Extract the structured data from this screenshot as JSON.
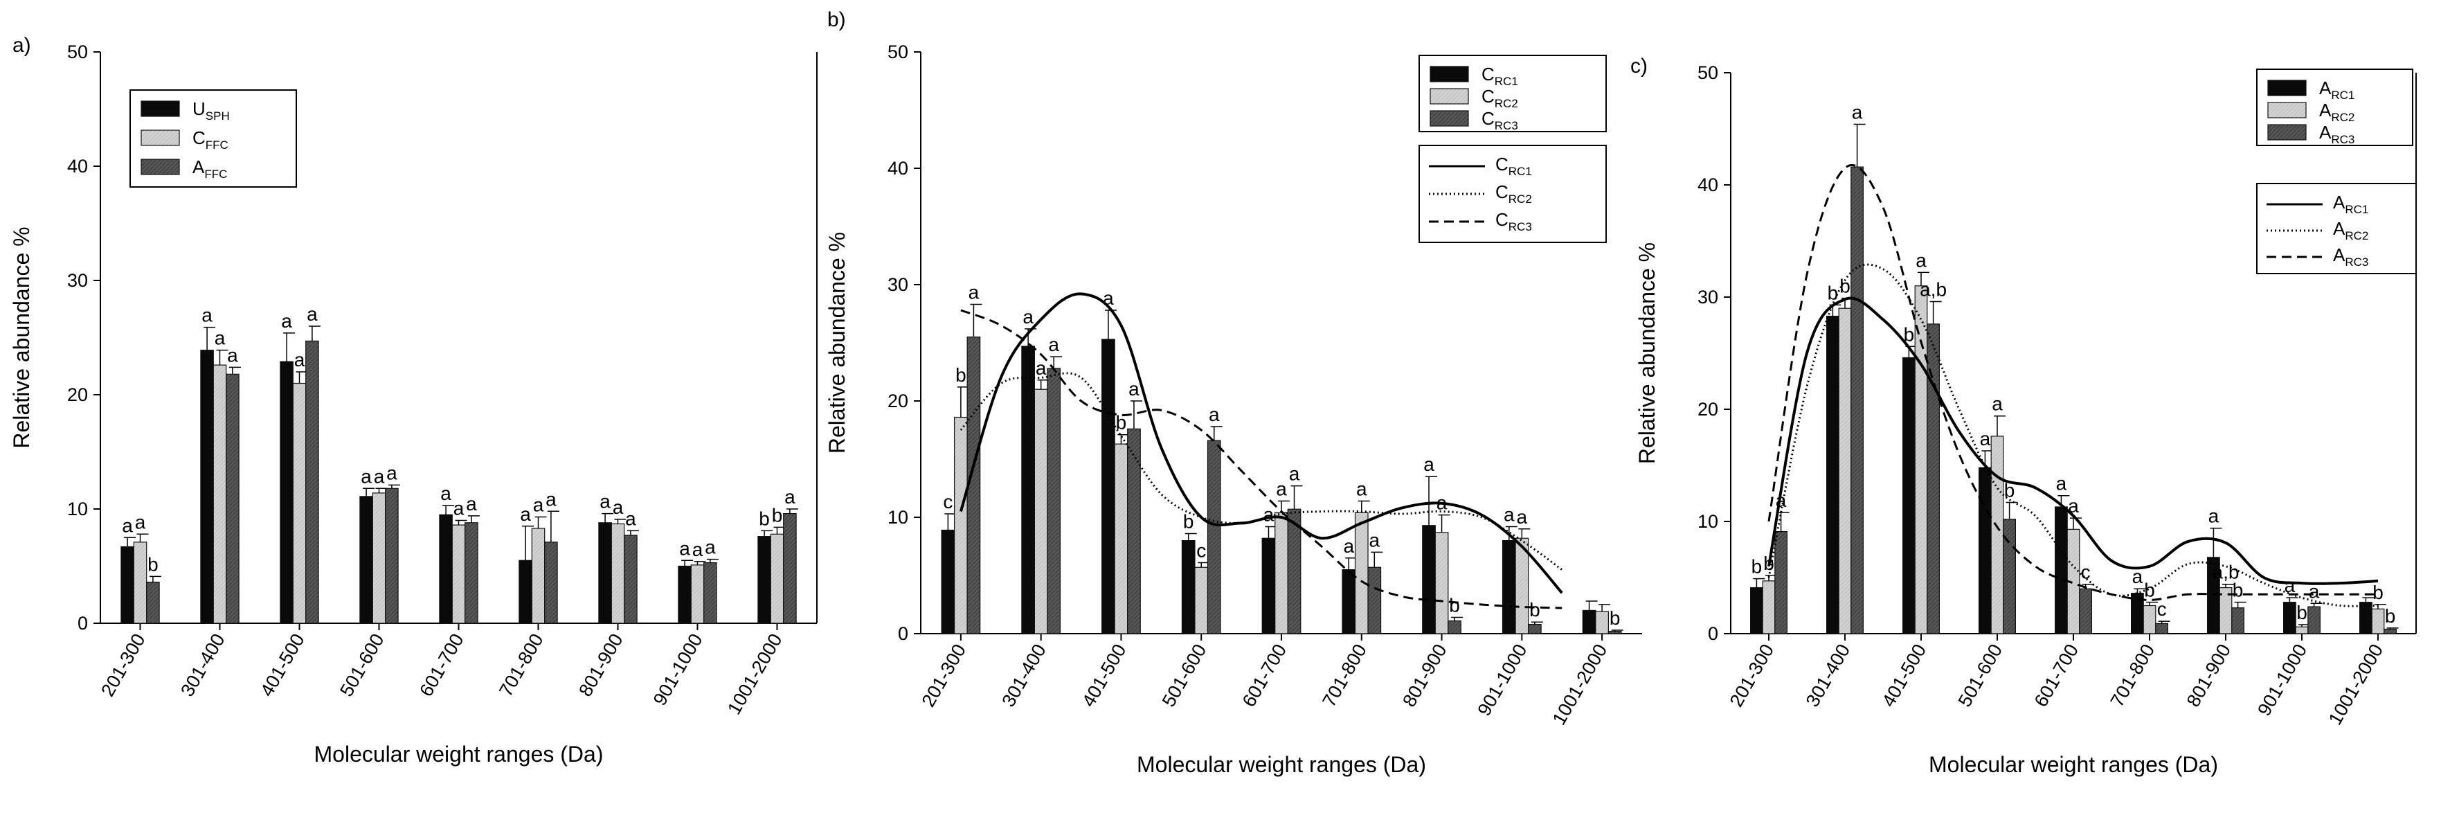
{
  "colors": {
    "s1": "#0a0a0a",
    "s2": "#cfcfcf",
    "s3": "#565656"
  },
  "chart_data": [
    {
      "type": "bar",
      "panel": "a)",
      "categories": [
        "201-300",
        "301-400",
        "401-500",
        "501-600",
        "601-700",
        "701-800",
        "801-900",
        "901-1000",
        "1001-2000"
      ],
      "xlabel": "Molecular weight ranges (Da)",
      "ylabel": "Relative abundance %",
      "ylim": [
        0,
        50
      ],
      "yticks": [
        0,
        10,
        20,
        30,
        40,
        50
      ],
      "legend_position": "top-left",
      "series": [
        {
          "name": "USPH",
          "legend_main": "U",
          "legend_sub": "SPH",
          "values": [
            6.7,
            23.9,
            22.9,
            11.1,
            9.5,
            5.5,
            8.8,
            5.0,
            7.6
          ],
          "errors": [
            0.8,
            2.0,
            2.5,
            0.7,
            0.8,
            3.0,
            0.8,
            0.5,
            0.5
          ],
          "labels": [
            "a",
            "a",
            "a",
            "a",
            "a",
            "a",
            "a",
            "a",
            "b"
          ]
        },
        {
          "name": "CFFC",
          "legend_main": "C",
          "legend_sub": "FFC",
          "values": [
            7.1,
            22.6,
            21.0,
            11.4,
            8.6,
            8.3,
            8.7,
            5.1,
            7.8
          ],
          "errors": [
            0.7,
            1.3,
            1.0,
            0.4,
            0.4,
            1.0,
            0.4,
            0.3,
            0.6
          ],
          "labels": [
            "a",
            "a",
            "a",
            "a",
            "a",
            "a",
            "a",
            "a",
            "b"
          ]
        },
        {
          "name": "AFFC",
          "legend_main": "A",
          "legend_sub": "FFC",
          "values": [
            3.6,
            21.8,
            24.7,
            11.8,
            8.8,
            7.1,
            7.7,
            5.3,
            9.6
          ],
          "errors": [
            0.5,
            0.6,
            1.3,
            0.3,
            0.6,
            2.7,
            0.4,
            0.3,
            0.4
          ],
          "labels": [
            "b",
            "a",
            "a",
            "a",
            "a",
            "a",
            "a",
            "a",
            "a"
          ]
        }
      ]
    },
    {
      "type": "bar",
      "panel": "b)",
      "categories": [
        "201-300",
        "301-400",
        "401-500",
        "501-600",
        "601-700",
        "701-800",
        "801-900",
        "901-1000",
        "1001-2000"
      ],
      "xlabel": "Molecular weight ranges (Da)",
      "ylabel": "Relative abundance %",
      "ylim": [
        0,
        50
      ],
      "yticks": [
        0,
        10,
        20,
        30,
        40,
        50
      ],
      "legend_position": "top-right",
      "series": [
        {
          "name": "CRC1",
          "legend_main": "C",
          "legend_sub": "RC1",
          "values": [
            8.9,
            24.7,
            25.3,
            8.0,
            8.2,
            5.5,
            9.3,
            8.0,
            2.0
          ],
          "errors": [
            1.4,
            1.5,
            2.5,
            0.6,
            1.0,
            1.0,
            4.2,
            1.2,
            0.8
          ],
          "labels": [
            "c",
            "a",
            "a",
            "b",
            "a",
            "a",
            "a",
            "a",
            ""
          ]
        },
        {
          "name": "CRC2",
          "legend_main": "C",
          "legend_sub": "RC2",
          "values": [
            18.6,
            21.0,
            16.3,
            5.7,
            10.4,
            10.4,
            8.7,
            8.2,
            1.9
          ],
          "errors": [
            2.6,
            0.8,
            0.8,
            0.4,
            1.0,
            1.0,
            1.5,
            0.8,
            0.6
          ],
          "labels": [
            "b",
            "a",
            "b",
            "c",
            "a",
            "a",
            "a",
            "a",
            ""
          ]
        },
        {
          "name": "CRC3",
          "legend_main": "C",
          "legend_sub": "RC3",
          "values": [
            25.5,
            22.8,
            17.6,
            16.6,
            10.7,
            5.7,
            1.1,
            0.8,
            0.2
          ],
          "errors": [
            2.8,
            1.0,
            2.4,
            1.2,
            2.0,
            1.3,
            0.3,
            0.2,
            0.1
          ],
          "labels": [
            "a",
            "a",
            "a",
            "a",
            "a",
            "a",
            "b",
            "b",
            "b"
          ]
        }
      ],
      "trend_lines": [
        {
          "name": "CRC1",
          "legend_main": "C",
          "legend_sub": "RC1",
          "style": "solid",
          "x": [
            0,
            0.5,
            1,
            1.5,
            2,
            2.5,
            3,
            3.5,
            4,
            4.5,
            5,
            5.5,
            6,
            6.5,
            7,
            7.5
          ],
          "y": [
            10.5,
            22,
            27,
            29.2,
            26.5,
            16,
            10,
            9.5,
            10,
            8.2,
            9.5,
            10.8,
            11.2,
            10.2,
            7.5,
            3.5
          ]
        },
        {
          "name": "CRC2",
          "legend_main": "C",
          "legend_sub": "RC2",
          "style": "dotted",
          "x": [
            0,
            0.5,
            1,
            1.5,
            2,
            2.5,
            3,
            3.5,
            4,
            4.5,
            5,
            5.5,
            6,
            6.5,
            7,
            7.5
          ],
          "y": [
            17.5,
            21.5,
            22,
            22,
            17,
            12,
            10,
            9.5,
            10.3,
            10.5,
            10.5,
            10.3,
            10.5,
            10,
            8,
            5.5
          ]
        },
        {
          "name": "CRC3",
          "legend_main": "C",
          "legend_sub": "RC3",
          "style": "dashed",
          "x": [
            0,
            0.5,
            1,
            1.5,
            2,
            2.5,
            3,
            3.5,
            4,
            4.5,
            5,
            5.5,
            6,
            6.5,
            7,
            7.5
          ],
          "y": [
            27.8,
            26.5,
            24,
            20,
            18.8,
            19.2,
            17.5,
            14,
            10.5,
            7.5,
            4.5,
            3.2,
            2.8,
            2.5,
            2.3,
            2.2
          ]
        }
      ]
    },
    {
      "type": "bar",
      "panel": "c)",
      "categories": [
        "201-300",
        "301-400",
        "401-500",
        "501-600",
        "601-700",
        "701-800",
        "801-900",
        "901-1000",
        "1001-2000"
      ],
      "xlabel": "Molecular weight ranges (Da)",
      "ylabel": "Relative abundance %",
      "ylim": [
        0,
        50
      ],
      "yticks": [
        0,
        10,
        20,
        30,
        40,
        50
      ],
      "legend_position": "top-right",
      "series": [
        {
          "name": "ARC1",
          "legend_main": "A",
          "legend_sub": "RC1",
          "values": [
            4.1,
            28.3,
            24.6,
            14.8,
            11.3,
            3.6,
            6.8,
            2.8,
            2.8
          ],
          "errors": [
            0.8,
            1.0,
            1.0,
            1.5,
            1.0,
            0.4,
            2.6,
            0.4,
            0.4
          ],
          "labels": [
            "b",
            "b",
            "b",
            "a",
            "a",
            "a",
            "a",
            "a",
            ""
          ]
        },
        {
          "name": "ARC2",
          "legend_main": "A",
          "legend_sub": "RC2",
          "values": [
            4.7,
            29.0,
            31.0,
            17.6,
            9.3,
            2.5,
            4.1,
            0.6,
            2.2
          ],
          "errors": [
            0.5,
            0.9,
            1.2,
            1.8,
            1.0,
            0.3,
            0.3,
            0.2,
            0.4
          ],
          "labels": [
            "b",
            "b",
            "a",
            "a",
            "a",
            "b",
            "a,b",
            "b",
            "b"
          ]
        },
        {
          "name": "ARC3",
          "legend_main": "A",
          "legend_sub": "RC3",
          "values": [
            9.1,
            41.6,
            27.6,
            10.2,
            4.0,
            0.9,
            2.3,
            2.4,
            0.4
          ],
          "errors": [
            1.7,
            3.8,
            2.0,
            1.5,
            0.4,
            0.2,
            0.5,
            0.3,
            0.1
          ],
          "labels": [
            "a",
            "a",
            "a,b",
            "b",
            "c",
            "c",
            "b",
            "a",
            "b"
          ]
        }
      ],
      "trend_lines": [
        {
          "name": "ARC1",
          "legend_main": "A",
          "legend_sub": "RC1",
          "style": "solid",
          "x": [
            0,
            0.5,
            1,
            1.5,
            2,
            2.5,
            3,
            3.5,
            4,
            4.5,
            5,
            5.5,
            6,
            6.5,
            7,
            7.5,
            8
          ],
          "y": [
            6,
            25,
            29.8,
            28,
            24,
            18,
            14,
            13,
            10.5,
            6.5,
            6,
            8.2,
            8.1,
            5,
            4.5,
            4.5,
            4.7
          ]
        },
        {
          "name": "ARC2",
          "legend_main": "A",
          "legend_sub": "RC2",
          "style": "dotted",
          "x": [
            0,
            0.5,
            1,
            1.5,
            2,
            2.5,
            3,
            3.5,
            4,
            4.5,
            5,
            5.5,
            6,
            6.5,
            7,
            7.5,
            8
          ],
          "y": [
            5,
            22,
            31.5,
            32.5,
            28,
            20,
            13,
            10.5,
            6,
            3.5,
            4,
            6.2,
            6,
            4.5,
            3.2,
            2.5,
            2.5
          ]
        },
        {
          "name": "ARC3",
          "legend_main": "A",
          "legend_sub": "RC3",
          "style": "dashed",
          "x": [
            0,
            0.5,
            1,
            1.5,
            2,
            2.5,
            3,
            3.5,
            4,
            4.5,
            5,
            5.5,
            6,
            6.5,
            7,
            7.5,
            8
          ],
          "y": [
            10,
            32,
            41.5,
            38,
            26,
            16,
            9.5,
            6,
            4.5,
            3.5,
            3,
            3.5,
            3.5,
            3.5,
            3.5,
            3.5,
            3.5
          ]
        }
      ]
    }
  ]
}
